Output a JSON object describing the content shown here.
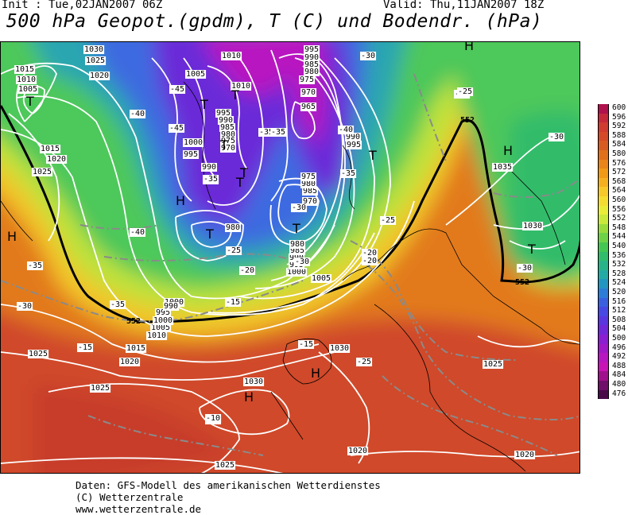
{
  "header": {
    "init": "Init : Tue,02JAN2007 06Z",
    "valid": "Valid: Thu,11JAN2007 18Z",
    "title": "500 hPa Geopot.(gpdm), T (C) und Bodendr. (hPa)"
  },
  "legend": {
    "levels": [
      "600",
      "596",
      "592",
      "588",
      "584",
      "580",
      "576",
      "572",
      "568",
      "564",
      "560",
      "556",
      "552",
      "548",
      "544",
      "540",
      "536",
      "532",
      "528",
      "524",
      "520",
      "516",
      "512",
      "508",
      "504",
      "500",
      "496",
      "492",
      "488",
      "484",
      "480",
      "476"
    ],
    "colors": [
      "#b0124e",
      "#c62a3a",
      "#d03c30",
      "#d44a28",
      "#d85c22",
      "#e0701c",
      "#e8841a",
      "#f09a18",
      "#f5b020",
      "#f7c82a",
      "#f5dc30",
      "#e8ec36",
      "#c8e83a",
      "#98dc3c",
      "#6ed246",
      "#44c652",
      "#30bc6a",
      "#28b488",
      "#24aaa4",
      "#2296c0",
      "#2c7cd8",
      "#3a60e0",
      "#4848e4",
      "#5a36e0",
      "#7028d8",
      "#8a1ed0",
      "#a018c8",
      "#b816c0",
      "#c814b4",
      "#a0108c",
      "#70106a",
      "#4a0a4a"
    ]
  },
  "map": {
    "pressure_labels": [
      "1030",
      "1025",
      "1020",
      "1015",
      "1010",
      "1005",
      "1010",
      "1005",
      "1010",
      "995",
      "990",
      "985",
      "980",
      "975",
      "970",
      "995",
      "990",
      "985",
      "980",
      "975",
      "970",
      "965",
      "1000",
      "995",
      "990",
      "985",
      "980",
      "1000",
      "1015",
      "1020",
      "1025",
      "1010",
      "1005",
      "1000",
      "995",
      "990",
      "1015",
      "1020",
      "1025",
      "1030",
      "1025",
      "1030",
      "1025",
      "1020",
      "1025",
      "1020",
      "1035",
      "1030",
      "995",
      "990",
      "985",
      "980",
      "975",
      "970",
      "1005",
      "1000",
      "995",
      "990",
      "985",
      "980"
    ],
    "temp_labels": [
      "-45",
      "-40",
      "-35",
      "-35",
      "-30",
      "-25",
      "-20",
      "-15",
      "-10",
      "-15",
      "-40",
      "-25",
      "-20",
      "-35",
      "-40",
      "-35",
      "-30",
      "-25",
      "-35",
      "-30",
      "-25",
      "-30",
      "-20",
      "-15",
      "-10",
      "-25",
      "-35",
      "-30",
      "-45",
      "-30"
    ],
    "contour_label_552": "552",
    "highs_lows": [
      "H",
      "H",
      "H",
      "H",
      "H",
      "H",
      "T",
      "T",
      "T",
      "T",
      "T",
      "T",
      "T",
      "T",
      "T",
      "T"
    ]
  },
  "footer": {
    "line1": "Daten: GFS-Modell des amerikanischen Wetterdienstes",
    "line2": "(C) Wetterzentrale",
    "line3": "www.wetterzentrale.de"
  }
}
